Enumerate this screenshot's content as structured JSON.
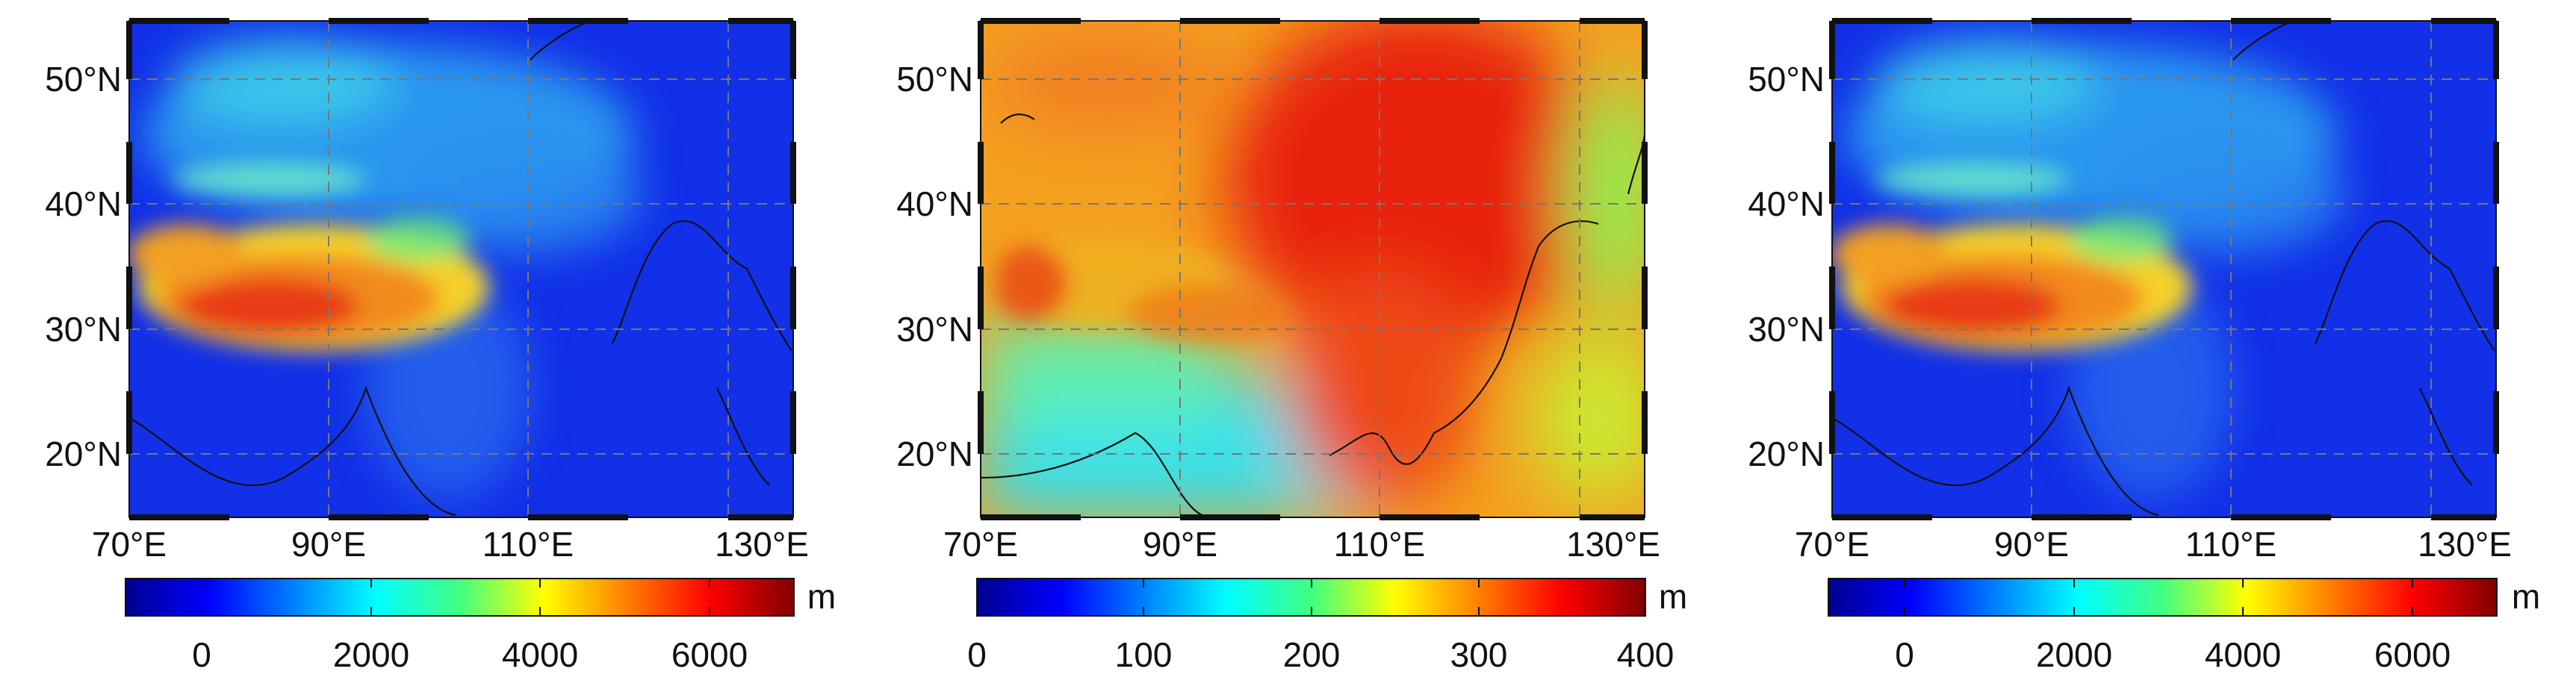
{
  "panels": [
    {
      "lat_labels": [
        "50°N",
        "40°N",
        "30°N",
        "20°N"
      ],
      "lon_labels": [
        "70°E",
        "90°E",
        "110°E",
        "130°E"
      ],
      "colorbar": {
        "ticks": [
          "0",
          "2000",
          "4000",
          "6000"
        ],
        "unit": "m",
        "range": [
          -900,
          7000
        ]
      },
      "colormap": "jet"
    },
    {
      "lat_labels": [
        "50°N",
        "40°N",
        "30°N",
        "20°N"
      ],
      "lon_labels": [
        "70°E",
        "90°E",
        "110°E",
        "130°E"
      ],
      "colorbar": {
        "ticks": [
          "0",
          "100",
          "200",
          "300",
          "400"
        ],
        "unit": "m",
        "range": [
          0,
          400
        ]
      },
      "colormap": "jet"
    },
    {
      "lat_labels": [
        "50°N",
        "40°N",
        "30°N",
        "20°N"
      ],
      "lon_labels": [
        "70°E",
        "90°E",
        "110°E",
        "130°E"
      ],
      "colorbar": {
        "ticks": [
          "0",
          "2000",
          "4000",
          "6000"
        ],
        "unit": "m",
        "range": [
          -900,
          7000
        ]
      },
      "colormap": "jet"
    }
  ]
}
